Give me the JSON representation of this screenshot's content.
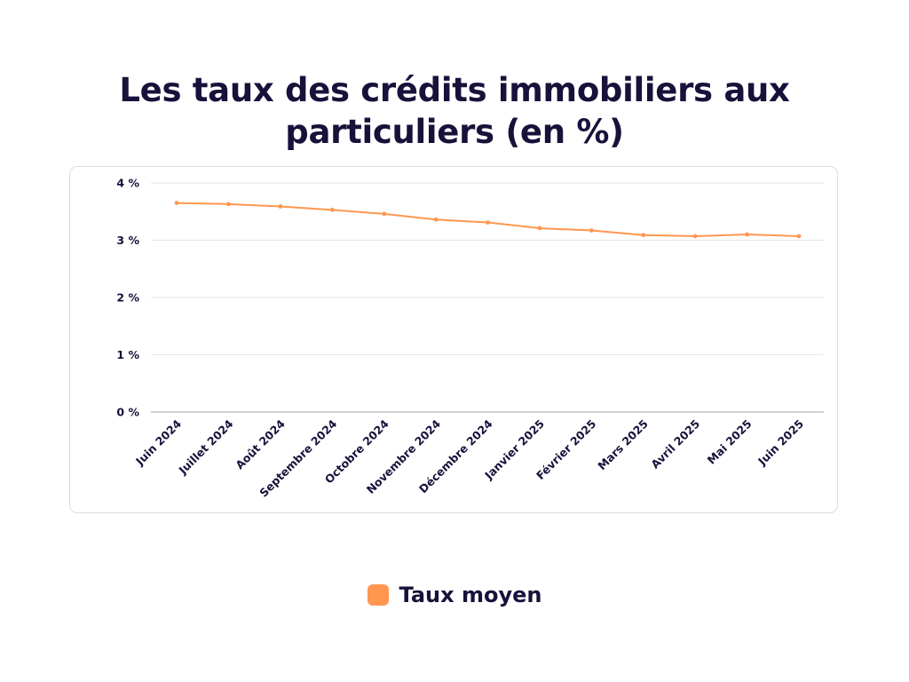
{
  "chart_data": {
    "type": "line",
    "title": "Les taux des crédits immobiliers aux particuliers (en %)",
    "xlabel": "",
    "ylabel": "",
    "categories": [
      "Juin 2024",
      "Juillet 2024",
      "Août 2024",
      "Septembre 2024",
      "Octobre 2024",
      "Novembre 2024",
      "Décembre 2024",
      "Janvier 2025",
      "Février 2025",
      "Mars 2025",
      "Avril 2025",
      "Mai 2025",
      "Juin 2025"
    ],
    "series": [
      {
        "name": "Taux moyen",
        "color": "#ff9750",
        "values": [
          3.65,
          3.63,
          3.59,
          3.53,
          3.46,
          3.36,
          3.31,
          3.21,
          3.17,
          3.09,
          3.07,
          3.1,
          3.07
        ]
      }
    ],
    "ylim": [
      0,
      4
    ],
    "yticks": [
      0,
      1,
      2,
      3,
      4
    ],
    "ytick_labels": [
      "0 %",
      "1 %",
      "2 %",
      "3 %",
      "4 %"
    ],
    "grid": true,
    "legend_position": "bottom-center"
  },
  "colors": {
    "text": "#17123a",
    "grid": "#e6e6e6",
    "axis": "#b5b5b5",
    "line": "#ff9750"
  }
}
